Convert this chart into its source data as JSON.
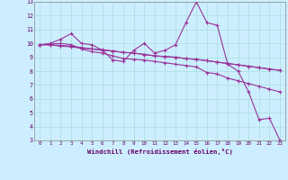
{
  "xlabel": "Windchill (Refroidissement éolien,°C)",
  "background_color": "#cceeff",
  "grid_color": "#aadddd",
  "line_color": "#993399",
  "xlim": [
    -0.5,
    23.5
  ],
  "ylim": [
    3,
    13
  ],
  "xticks": [
    0,
    1,
    2,
    3,
    4,
    5,
    6,
    7,
    8,
    9,
    10,
    11,
    12,
    13,
    14,
    15,
    16,
    17,
    18,
    19,
    20,
    21,
    22,
    23
  ],
  "yticks": [
    3,
    4,
    5,
    6,
    7,
    8,
    9,
    10,
    11,
    12,
    13
  ],
  "series": [
    [
      9.9,
      10.0,
      10.3,
      10.7,
      10.0,
      9.9,
      9.5,
      8.8,
      8.7,
      9.5,
      10.0,
      9.3,
      9.5,
      9.9,
      11.5,
      13.0,
      11.5,
      11.3,
      8.5,
      8.0,
      6.5,
      4.5,
      4.6,
      3.0
    ],
    [
      9.9,
      9.95,
      10.0,
      9.9,
      9.6,
      9.4,
      9.3,
      9.1,
      8.9,
      8.85,
      8.8,
      8.7,
      8.6,
      8.5,
      8.4,
      8.3,
      7.9,
      7.8,
      7.5,
      7.3,
      7.1,
      6.9,
      6.7,
      6.5
    ],
    [
      9.9,
      9.9,
      9.85,
      9.8,
      9.7,
      9.6,
      9.55,
      9.45,
      9.35,
      9.3,
      9.2,
      9.1,
      9.05,
      9.0,
      8.9,
      8.85,
      8.75,
      8.65,
      8.55,
      8.45,
      8.35,
      8.25,
      8.15,
      8.05
    ],
    [
      9.9,
      9.9,
      9.8,
      9.75,
      9.65,
      9.6,
      9.5,
      9.45,
      9.35,
      9.3,
      9.2,
      9.1,
      9.05,
      9.0,
      8.9,
      8.85,
      8.75,
      8.65,
      8.55,
      8.45,
      8.35,
      8.25,
      8.15,
      8.05
    ]
  ]
}
